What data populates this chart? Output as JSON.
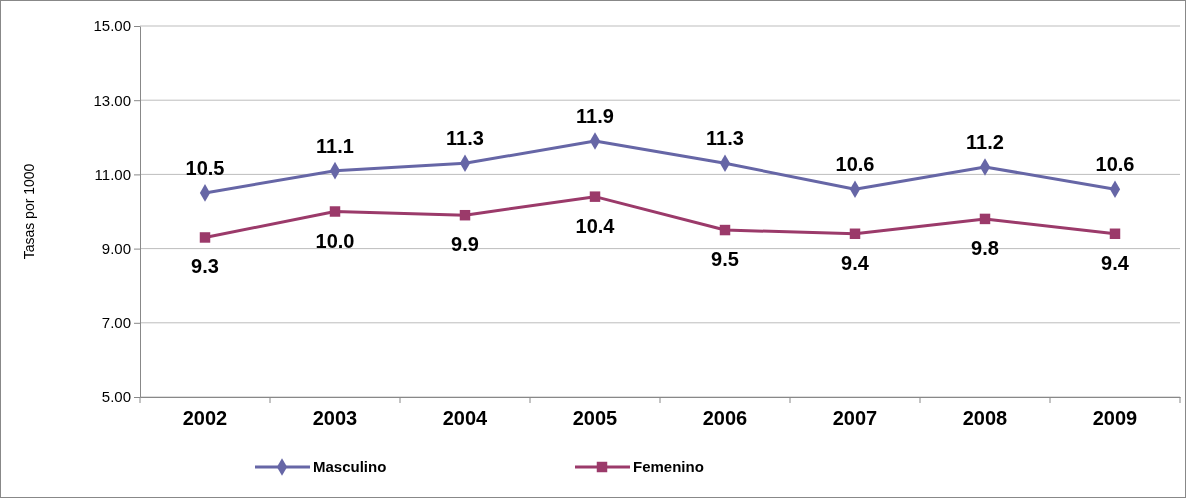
{
  "chart_data": {
    "type": "line",
    "ylabel": "Tasas por 1000",
    "categories": [
      "2002",
      "2003",
      "2004",
      "2005",
      "2006",
      "2007",
      "2008",
      "2009"
    ],
    "series": [
      {
        "name": "Masculino",
        "color": "#6666a6",
        "marker": "diamond",
        "values": [
          10.5,
          11.1,
          11.3,
          11.9,
          11.3,
          10.6,
          11.2,
          10.6
        ],
        "value_labels": [
          "10.5",
          "11.1",
          "11.3",
          "11.9",
          "11.3",
          "10.6",
          "11.2",
          "10.6"
        ]
      },
      {
        "name": "Femenino",
        "color": "#9b3a6a",
        "marker": "square",
        "values": [
          9.3,
          10.0,
          9.9,
          10.4,
          9.5,
          9.4,
          9.8,
          9.4
        ],
        "value_labels": [
          "9.3",
          "10.0",
          "9.9",
          "10.4",
          "9.5",
          "9.4",
          "9.8",
          "9.4"
        ]
      }
    ],
    "ylim": [
      5,
      15
    ],
    "yticks": [
      {
        "value": 5,
        "label": "5.00"
      },
      {
        "value": 7,
        "label": "7.00"
      },
      {
        "value": 9,
        "label": "9.00"
      },
      {
        "value": 11,
        "label": "11.00"
      },
      {
        "value": 13,
        "label": "13.00"
      },
      {
        "value": 15,
        "label": "15.00"
      }
    ],
    "grid": "y",
    "legend": "bottom",
    "line_style": "solid"
  }
}
